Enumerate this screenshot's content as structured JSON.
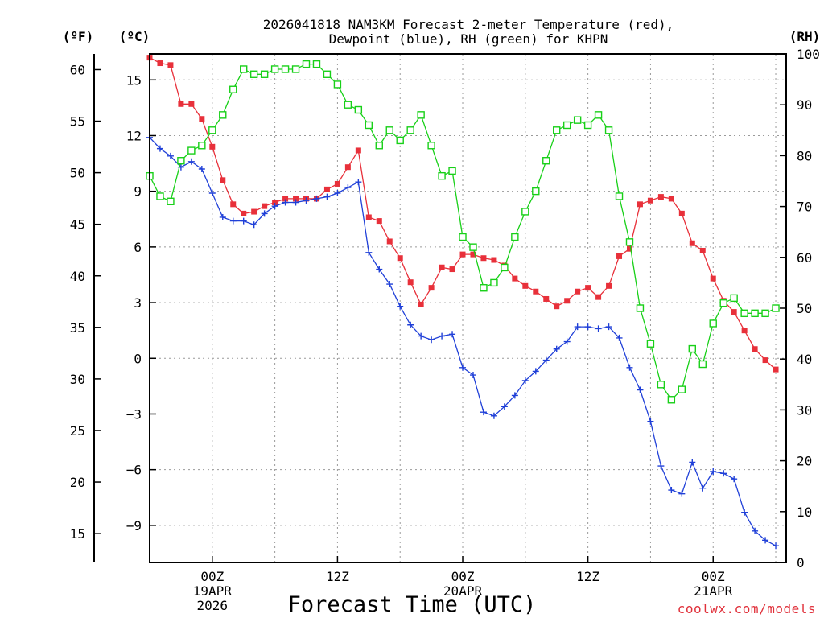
{
  "chart_data": {
    "type": "line",
    "title_lines": [
      "2026041818 NAM3KM Forecast 2-meter Temperature (red),",
      "Dewpoint (blue), RH (green) for KHPN"
    ],
    "xlabel": "Forecast Time (UTC)",
    "credit": "coolwx.com/models",
    "units": {
      "fahrenheit": "(ºF)",
      "celsius": "(ºC)",
      "rh": "(RH)"
    },
    "x_range_hours": [
      0,
      61
    ],
    "x_ticks": [
      {
        "hour": 6,
        "lines": [
          "00Z",
          "19APR",
          "2026"
        ]
      },
      {
        "hour": 18,
        "lines": [
          "12Z"
        ]
      },
      {
        "hour": 30,
        "lines": [
          "00Z",
          "20APR"
        ]
      },
      {
        "hour": 42,
        "lines": [
          "12Z"
        ]
      },
      {
        "hour": 54,
        "lines": [
          "00Z",
          "21APR"
        ]
      }
    ],
    "celsius_axis": {
      "range": [
        -11,
        16.4
      ],
      "ticks": [
        "-9",
        "-6",
        "-3",
        "0",
        "3",
        "6",
        "9",
        "12",
        "15"
      ]
    },
    "fahrenheit_axis": {
      "ticks": [
        "15",
        "20",
        "25",
        "30",
        "35",
        "40",
        "45",
        "50",
        "55",
        "60"
      ]
    },
    "rh_axis": {
      "range": [
        0,
        100
      ],
      "ticks": [
        "0",
        "10",
        "20",
        "30",
        "40",
        "50",
        "60",
        "70",
        "80",
        "90",
        "100"
      ]
    },
    "series": [
      {
        "name": "Temperature",
        "axis": "celsius",
        "color": "#e8303a",
        "marker": "filled-square",
        "values": [
          16.2,
          15.9,
          15.8,
          13.7,
          13.7,
          12.9,
          11.4,
          9.6,
          8.3,
          7.8,
          7.9,
          8.2,
          8.4,
          8.6,
          8.6,
          8.6,
          8.6,
          9.1,
          9.4,
          10.3,
          11.2,
          7.6,
          7.4,
          6.3,
          5.4,
          4.1,
          2.9,
          3.8,
          4.9,
          4.8,
          5.6,
          5.6,
          5.4,
          5.3,
          5.0,
          4.3,
          3.9,
          3.6,
          3.2,
          2.8,
          3.1,
          3.6,
          3.8,
          3.3,
          3.9,
          5.5,
          5.9,
          8.3,
          8.5,
          8.7,
          8.6,
          7.8,
          6.2,
          5.8,
          4.3,
          3.1,
          2.5,
          1.5,
          0.5,
          -0.1,
          -0.6
        ]
      },
      {
        "name": "Dewpoint",
        "axis": "celsius",
        "color": "#2040d8",
        "marker": "plus",
        "values": [
          11.9,
          11.3,
          10.9,
          10.3,
          10.6,
          10.2,
          8.9,
          7.6,
          7.4,
          7.4,
          7.2,
          7.8,
          8.2,
          8.4,
          8.4,
          8.5,
          8.6,
          8.7,
          8.9,
          9.2,
          9.5,
          5.7,
          4.8,
          4.0,
          2.8,
          1.8,
          1.2,
          1.0,
          1.2,
          1.3,
          -0.5,
          -0.9,
          -2.9,
          -3.1,
          -2.6,
          -2.0,
          -1.2,
          -0.7,
          -0.1,
          0.5,
          0.9,
          1.7,
          1.7,
          1.6,
          1.7,
          1.1,
          -0.5,
          -1.7,
          -3.4,
          -5.8,
          -7.1,
          -7.3,
          -5.6,
          -7.0,
          -6.1,
          -6.2,
          -6.5,
          -8.3,
          -9.3,
          -9.8,
          -10.1
        ]
      },
      {
        "name": "RH",
        "axis": "rh",
        "color": "#18d018",
        "marker": "open-square",
        "values": [
          76,
          72,
          71,
          79,
          81,
          82,
          85,
          88,
          93,
          97,
          96,
          96,
          97,
          97,
          97,
          98,
          98,
          96,
          94,
          90,
          89,
          86,
          82,
          85,
          83,
          85,
          88,
          82,
          76,
          77,
          64,
          62,
          54,
          55,
          58,
          64,
          69,
          73,
          79,
          85,
          86,
          87,
          86,
          88,
          85,
          72,
          63,
          50,
          43,
          35,
          32,
          34,
          42,
          39,
          47,
          51,
          52,
          49,
          49,
          49,
          50
        ]
      }
    ]
  }
}
